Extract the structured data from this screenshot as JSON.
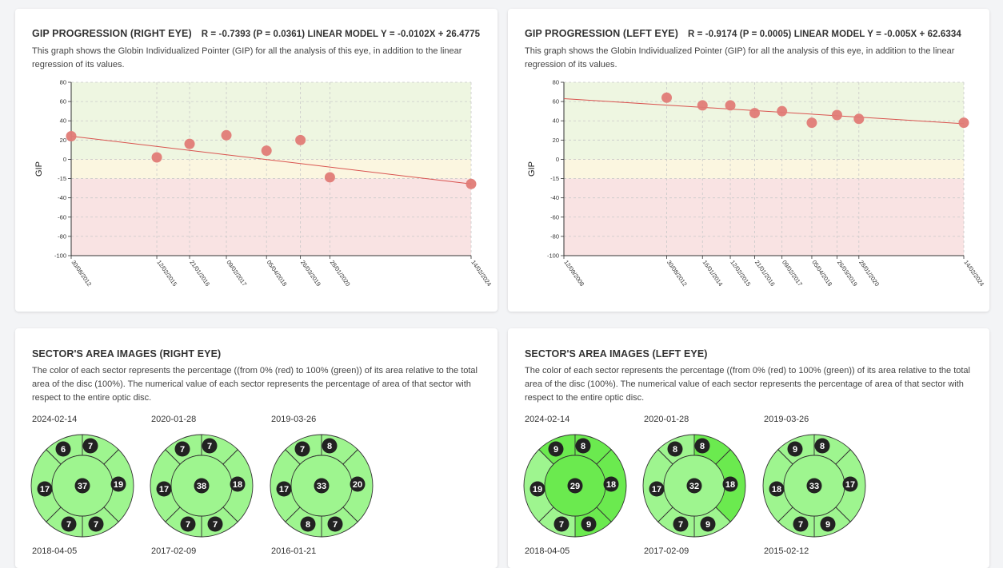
{
  "gip_right": {
    "title": "GIP PROGRESSION (RIGHT EYE)",
    "stats": "R = -0.7393  (P = 0.0361)  LINEAR MODEL Y = -0.0102X + 26.4775",
    "description": "This graph shows the Globin Individualized Pointer (GIP) for all the analysis of this eye, in addition to the linear regression of its values."
  },
  "gip_left": {
    "title": "GIP PROGRESSION (LEFT EYE)",
    "stats": "R = -0.9174  (P = 0.0005)  LINEAR MODEL Y = -0.005X + 62.6334",
    "description": "This graph shows the Globin Individualized Pointer (GIP) for all the analysis of this eye, in addition to the linear regression of its values."
  },
  "sector_right": {
    "title": "SECTOR'S AREA IMAGES (RIGHT EYE)",
    "description": "The color of each sector represents the percentage ((from 0% (red) to 100% (green)) of its area relative to the total area of the disc (100%). The numerical value of each sector represents the percentage of area of that sector with respect to the entire optic disc.",
    "discs": [
      {
        "date": "2024-02-14",
        "center": "37",
        "top_left": "6",
        "top": "7",
        "right": "19",
        "bottom_right": "7",
        "bottom_left": "7",
        "left": "17",
        "colors": [
          "#9ef58f",
          "#9ef58f",
          "#9ef58f",
          "#9ef58f",
          "#9ef58f",
          "#9ef58f",
          "#9ef58f"
        ]
      },
      {
        "date": "2020-01-28",
        "center": "38",
        "top_left": "7",
        "top": "7",
        "right": "18",
        "bottom_right": "7",
        "bottom_left": "7",
        "left": "17",
        "colors": [
          "#9ef58f",
          "#9ef58f",
          "#9ef58f",
          "#9ef58f",
          "#9ef58f",
          "#9ef58f",
          "#9ef58f"
        ]
      },
      {
        "date": "2019-03-26",
        "center": "33",
        "top_left": "7",
        "top": "8",
        "right": "20",
        "bottom_right": "7",
        "bottom_left": "8",
        "left": "17",
        "colors": [
          "#9ef58f",
          "#9ef58f",
          "#9ef58f",
          "#9ef58f",
          "#9ef58f",
          "#9ef58f",
          "#9ef58f"
        ]
      }
    ],
    "next_dates": [
      "2018-04-05",
      "2017-02-09",
      "2016-01-21"
    ]
  },
  "sector_left": {
    "title": "SECTOR'S AREA IMAGES (LEFT EYE)",
    "description": "The color of each sector represents the percentage ((from 0% (red) to 100% (green)) of its area relative to the total area of the disc (100%). The numerical value of each sector represents the percentage of area of that sector with respect to the entire optic disc.",
    "discs": [
      {
        "date": "2024-02-14",
        "center": "29",
        "top_left": "9",
        "top": "8",
        "right": "18",
        "bottom_right": "9",
        "bottom_left": "7",
        "left": "19",
        "colors": [
          "#6bea4f",
          "#6bea4f",
          "#6bea4f",
          "#6bea4f",
          "#6bea4f",
          "#9ef58f",
          "#9ef58f"
        ]
      },
      {
        "date": "2020-01-28",
        "center": "32",
        "top_left": "8",
        "top": "8",
        "right": "18",
        "bottom_right": "9",
        "bottom_left": "7",
        "left": "17",
        "colors": [
          "#9ef58f",
          "#9ef58f",
          "#6bea4f",
          "#6bea4f",
          "#9ef58f",
          "#9ef58f",
          "#9ef58f"
        ]
      },
      {
        "date": "2019-03-26",
        "center": "33",
        "top_left": "9",
        "top": "8",
        "right": "17",
        "bottom_right": "9",
        "bottom_left": "7",
        "left": "18",
        "colors": [
          "#9ef58f",
          "#9ef58f",
          "#9ef58f",
          "#9ef58f",
          "#9ef58f",
          "#9ef58f",
          "#9ef58f"
        ]
      }
    ],
    "next_dates": [
      "2018-04-05",
      "2017-02-09",
      "2015-02-12"
    ]
  },
  "chart_data": [
    {
      "type": "scatter",
      "title": "GIP PROGRESSION (RIGHT EYE)",
      "ylabel": "GIP",
      "ylim": [
        -100,
        80
      ],
      "yticks": [
        80,
        60,
        40,
        20,
        0,
        -15,
        -40,
        -60,
        -80,
        -100
      ],
      "bands": [
        {
          "from": -15,
          "to": 80,
          "color": "#eef6e1"
        },
        {
          "from": -15,
          "to": 0,
          "color": "#fbf6e0"
        },
        {
          "from": -100,
          "to": -15,
          "color": "#f9e3e3"
        }
      ],
      "x_labels": [
        "30/08/2012",
        "12/02/2015",
        "21/01/2016",
        "09/02/2017",
        "05/04/2018",
        "26/03/2019",
        "28/01/2020",
        "14/02/2024"
      ],
      "x": [
        "2012-08-30",
        "2015-02-12",
        "2016-01-21",
        "2017-02-09",
        "2018-04-05",
        "2019-03-26",
        "2020-01-28",
        "2024-02-14"
      ],
      "series": [
        {
          "values": [
            24,
            2,
            16,
            25,
            9,
            20,
            -14,
            -22
          ]
        }
      ],
      "trendline": {
        "start": 24,
        "end": -22
      },
      "grid": true
    },
    {
      "type": "scatter",
      "title": "GIP PROGRESSION (LEFT EYE)",
      "ylabel": "GIP",
      "ylim": [
        -100,
        80
      ],
      "yticks": [
        80,
        60,
        40,
        20,
        0,
        -15,
        -40,
        -60,
        -80,
        -100
      ],
      "bands": [
        {
          "from": -15,
          "to": 80,
          "color": "#eef6e1"
        },
        {
          "from": -15,
          "to": 0,
          "color": "#fbf6e0"
        },
        {
          "from": -100,
          "to": -15,
          "color": "#f9e3e3"
        }
      ],
      "x_labels": [
        "12/09/2008",
        "30/08/2012",
        "16/01/2014",
        "12/02/2015",
        "21/01/2016",
        "09/02/2017",
        "05/04/2018",
        "26/03/2019",
        "28/01/2020",
        "14/02/2024"
      ],
      "x": [
        "2008-09-12",
        "2012-08-30",
        "2014-01-16",
        "2015-02-12",
        "2016-01-21",
        "2017-02-09",
        "2018-04-05",
        "2019-03-26",
        "2020-01-28",
        "2024-02-14"
      ],
      "series": [
        {
          "values": [
            null,
            64,
            56,
            56,
            48,
            50,
            38,
            46,
            42,
            38
          ]
        }
      ],
      "trendline": {
        "start": 63,
        "end": 37
      },
      "grid": true
    }
  ]
}
